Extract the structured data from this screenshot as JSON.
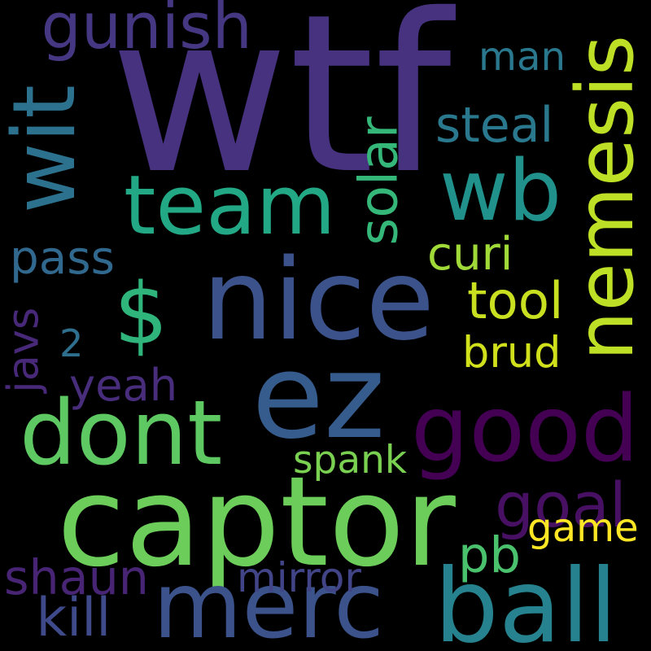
{
  "word_cloud": {
    "background": "#000000",
    "words": [
      {
        "text": "wtf",
        "color": "#46327e"
      },
      {
        "text": "captor",
        "color": "#6ccd5a"
      },
      {
        "text": "ez",
        "color": "#365c8d"
      },
      {
        "text": "nice",
        "color": "#3b528b"
      },
      {
        "text": "good",
        "color": "#440154"
      },
      {
        "text": "nemesis",
        "color": "#bddf26"
      },
      {
        "text": "merc",
        "color": "#3b528b"
      },
      {
        "text": "ball",
        "color": "#26828e"
      },
      {
        "text": "team",
        "color": "#22a884"
      },
      {
        "text": "wit",
        "color": "#2c728e"
      },
      {
        "text": "dont",
        "color": "#5ec962"
      },
      {
        "text": "wb",
        "color": "#21918c"
      },
      {
        "text": "$",
        "color": "#2fb47c"
      },
      {
        "text": "gunish",
        "color": "#453781"
      },
      {
        "text": "solar",
        "color": "#35b779"
      },
      {
        "text": "steal",
        "color": "#2a788e"
      },
      {
        "text": "man",
        "color": "#2a788e"
      },
      {
        "text": "curi",
        "color": "#a0da39"
      },
      {
        "text": "pass",
        "color": "#31688e"
      },
      {
        "text": "tool",
        "color": "#c8e020"
      },
      {
        "text": "brud",
        "color": "#d0e11c"
      },
      {
        "text": "2",
        "color": "#2e6f8e"
      },
      {
        "text": "javs",
        "color": "#482878"
      },
      {
        "text": "yeah",
        "color": "#472d7b"
      },
      {
        "text": "spank",
        "color": "#7ad151"
      },
      {
        "text": "goal",
        "color": "#471063"
      },
      {
        "text": "game",
        "color": "#fde725"
      },
      {
        "text": "pb",
        "color": "#4ac16d"
      },
      {
        "text": "shaun",
        "color": "#482475"
      },
      {
        "text": "mirror",
        "color": "#414487"
      },
      {
        "text": "kill",
        "color": "#3e4a89"
      }
    ]
  }
}
